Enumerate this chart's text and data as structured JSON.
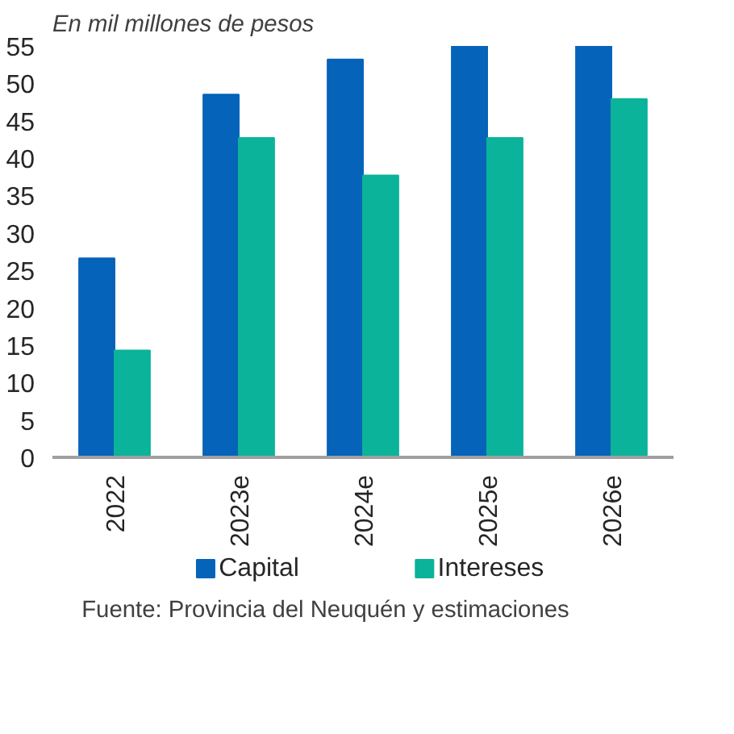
{
  "chart_data": {
    "type": "bar",
    "subtitle": "En mil millones de pesos",
    "categories": [
      "2022",
      "2023e",
      "2024e",
      "2025e",
      "2026e"
    ],
    "series": [
      {
        "name": "Capital",
        "color": "#0563b9",
        "values": [
          26.6,
          48.5,
          53.2,
          55,
          55
        ]
      },
      {
        "name": "Intereses",
        "color": "#0bb39a",
        "values": [
          14.3,
          42.7,
          37.7,
          42.7,
          47.9
        ]
      }
    ],
    "ylim": [
      0,
      55
    ],
    "yticks": [
      0,
      5,
      10,
      15,
      20,
      25,
      30,
      35,
      40,
      45,
      50,
      55
    ],
    "grid": false,
    "legend": "bottom",
    "annotations": [
      "Fuente: Provincia del Neuquén y estimaciones"
    ]
  }
}
